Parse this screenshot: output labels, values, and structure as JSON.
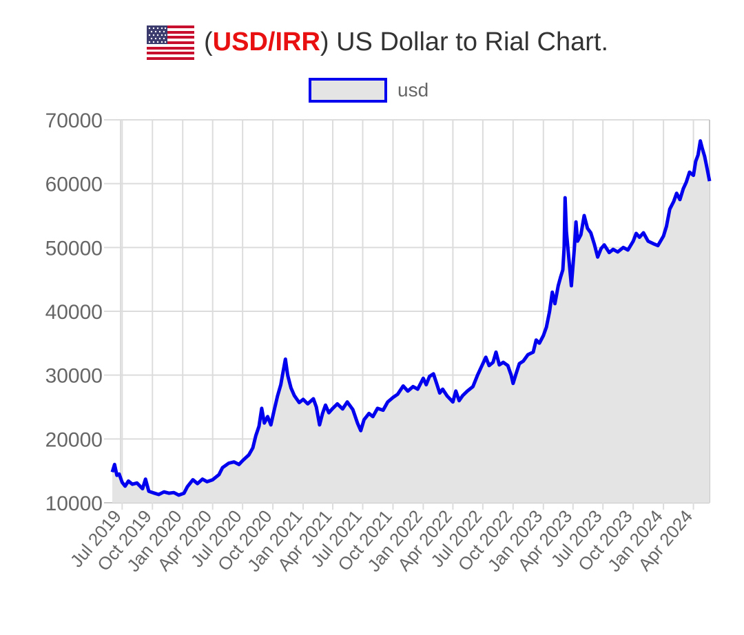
{
  "title": {
    "prefix": "(",
    "code": "USD/IRR",
    "suffix": ") US Dollar to Rial Chart.",
    "flag_icon": "us-flag-icon",
    "code_color": "#e81010"
  },
  "chart_data": {
    "type": "area",
    "title": "(USD/IRR) US Dollar to Rial Chart.",
    "legend": [
      "usd"
    ],
    "legend_position": "top",
    "grid": true,
    "xlabel": "",
    "ylabel": "",
    "ylim": [
      10000,
      70000
    ],
    "yticks": [
      70000,
      60000,
      50000,
      40000,
      30000,
      20000,
      10000
    ],
    "xlim": [
      "2019-06-01",
      "2024-05-20"
    ],
    "xticks": [
      {
        "date": "2019-07-01",
        "label": "Jul 2019"
      },
      {
        "date": "2019-10-01",
        "label": "Oct 2019"
      },
      {
        "date": "2020-01-01",
        "label": "Jan 2020"
      },
      {
        "date": "2020-04-01",
        "label": "Apr 2020"
      },
      {
        "date": "2020-07-01",
        "label": "Jul 2020"
      },
      {
        "date": "2020-10-01",
        "label": "Oct 2020"
      },
      {
        "date": "2021-01-01",
        "label": "Jan 2021"
      },
      {
        "date": "2021-04-01",
        "label": "Apr 2021"
      },
      {
        "date": "2021-07-01",
        "label": "Jul 2021"
      },
      {
        "date": "2021-10-01",
        "label": "Oct 2021"
      },
      {
        "date": "2022-01-01",
        "label": "Jan 2022"
      },
      {
        "date": "2022-04-01",
        "label": "Apr 2022"
      },
      {
        "date": "2022-07-01",
        "label": "Jul 2022"
      },
      {
        "date": "2022-10-01",
        "label": "Oct 2022"
      },
      {
        "date": "2023-01-01",
        "label": "Jan 2023"
      },
      {
        "date": "2023-04-01",
        "label": "Apr 2023"
      },
      {
        "date": "2023-07-01",
        "label": "Jul 2023"
      },
      {
        "date": "2023-10-01",
        "label": "Oct 2023"
      },
      {
        "date": "2024-01-01",
        "label": "Jan 2024"
      },
      {
        "date": "2024-04-01",
        "label": "Apr 2024"
      }
    ],
    "line_color": "#0000ee",
    "fill_color": "#e4e4e4",
    "series": [
      {
        "name": "usd",
        "points": [
          [
            "2019-06-01",
            14800
          ],
          [
            "2019-06-08",
            16000
          ],
          [
            "2019-06-15",
            14300
          ],
          [
            "2019-06-22",
            14500
          ],
          [
            "2019-07-01",
            13200
          ],
          [
            "2019-07-10",
            12600
          ],
          [
            "2019-07-20",
            13400
          ],
          [
            "2019-08-01",
            12900
          ],
          [
            "2019-08-15",
            13100
          ],
          [
            "2019-09-01",
            12200
          ],
          [
            "2019-09-10",
            13700
          ],
          [
            "2019-09-20",
            11800
          ],
          [
            "2019-10-01",
            11600
          ],
          [
            "2019-10-20",
            11300
          ],
          [
            "2019-11-05",
            11700
          ],
          [
            "2019-11-20",
            11500
          ],
          [
            "2019-12-05",
            11600
          ],
          [
            "2019-12-20",
            11200
          ],
          [
            "2020-01-05",
            11500
          ],
          [
            "2020-01-15",
            12500
          ],
          [
            "2020-02-01",
            13600
          ],
          [
            "2020-02-15",
            13000
          ],
          [
            "2020-03-01",
            13700
          ],
          [
            "2020-03-15",
            13300
          ],
          [
            "2020-04-01",
            13600
          ],
          [
            "2020-04-20",
            14400
          ],
          [
            "2020-05-01",
            15500
          ],
          [
            "2020-05-20",
            16200
          ],
          [
            "2020-06-05",
            16400
          ],
          [
            "2020-06-20",
            16000
          ],
          [
            "2020-07-01",
            16600
          ],
          [
            "2020-07-20",
            17500
          ],
          [
            "2020-08-01",
            18600
          ],
          [
            "2020-08-10",
            20500
          ],
          [
            "2020-08-20",
            22000
          ],
          [
            "2020-08-28",
            24800
          ],
          [
            "2020-09-05",
            22500
          ],
          [
            "2020-09-15",
            23500
          ],
          [
            "2020-09-25",
            22200
          ],
          [
            "2020-10-05",
            24500
          ],
          [
            "2020-10-15",
            26700
          ],
          [
            "2020-10-25",
            28500
          ],
          [
            "2020-11-01",
            30500
          ],
          [
            "2020-11-08",
            32500
          ],
          [
            "2020-11-15",
            30000
          ],
          [
            "2020-11-25",
            28000
          ],
          [
            "2020-12-05",
            26800
          ],
          [
            "2020-12-20",
            25700
          ],
          [
            "2021-01-01",
            26200
          ],
          [
            "2021-01-15",
            25500
          ],
          [
            "2021-02-01",
            26300
          ],
          [
            "2021-02-10",
            25000
          ],
          [
            "2021-02-20",
            22200
          ],
          [
            "2021-03-01",
            24000
          ],
          [
            "2021-03-10",
            25300
          ],
          [
            "2021-03-20",
            24100
          ],
          [
            "2021-04-01",
            24800
          ],
          [
            "2021-04-15",
            25500
          ],
          [
            "2021-05-01",
            24700
          ],
          [
            "2021-05-15",
            25800
          ],
          [
            "2021-06-01",
            24600
          ],
          [
            "2021-06-15",
            22500
          ],
          [
            "2021-06-25",
            21300
          ],
          [
            "2021-07-05",
            23000
          ],
          [
            "2021-07-20",
            24000
          ],
          [
            "2021-08-01",
            23500
          ],
          [
            "2021-08-15",
            24800
          ],
          [
            "2021-09-01",
            24500
          ],
          [
            "2021-09-15",
            25800
          ],
          [
            "2021-10-01",
            26500
          ],
          [
            "2021-10-15",
            27000
          ],
          [
            "2021-11-01",
            28300
          ],
          [
            "2021-11-15",
            27500
          ],
          [
            "2021-12-01",
            28200
          ],
          [
            "2021-12-15",
            27800
          ],
          [
            "2022-01-01",
            29500
          ],
          [
            "2022-01-10",
            28500
          ],
          [
            "2022-01-20",
            29800
          ],
          [
            "2022-02-01",
            30200
          ],
          [
            "2022-02-10",
            28800
          ],
          [
            "2022-02-20",
            27200
          ],
          [
            "2022-03-01",
            27800
          ],
          [
            "2022-03-15",
            26700
          ],
          [
            "2022-04-01",
            25800
          ],
          [
            "2022-04-10",
            27500
          ],
          [
            "2022-04-20",
            26000
          ],
          [
            "2022-05-01",
            26800
          ],
          [
            "2022-05-15",
            27500
          ],
          [
            "2022-06-01",
            28200
          ],
          [
            "2022-06-15",
            30000
          ],
          [
            "2022-07-01",
            31800
          ],
          [
            "2022-07-10",
            32800
          ],
          [
            "2022-07-20",
            31500
          ],
          [
            "2022-08-01",
            32000
          ],
          [
            "2022-08-10",
            33600
          ],
          [
            "2022-08-20",
            31600
          ],
          [
            "2022-09-01",
            32000
          ],
          [
            "2022-09-15",
            31500
          ],
          [
            "2022-09-25",
            30000
          ],
          [
            "2022-10-01",
            28700
          ],
          [
            "2022-10-10",
            30200
          ],
          [
            "2022-10-20",
            31800
          ],
          [
            "2022-11-01",
            32200
          ],
          [
            "2022-11-15",
            33200
          ],
          [
            "2022-12-01",
            33600
          ],
          [
            "2022-12-10",
            35500
          ],
          [
            "2022-12-20",
            35000
          ],
          [
            "2023-01-01",
            36200
          ],
          [
            "2023-01-10",
            37500
          ],
          [
            "2023-01-20",
            40000
          ],
          [
            "2023-01-28",
            43000
          ],
          [
            "2023-02-05",
            41200
          ],
          [
            "2023-02-15",
            44000
          ],
          [
            "2023-02-22",
            45300
          ],
          [
            "2023-03-01",
            46500
          ],
          [
            "2023-03-05",
            50000
          ],
          [
            "2023-03-08",
            57800
          ],
          [
            "2023-03-12",
            52500
          ],
          [
            "2023-03-20",
            48000
          ],
          [
            "2023-03-27",
            44000
          ],
          [
            "2023-04-05",
            49800
          ],
          [
            "2023-04-10",
            54000
          ],
          [
            "2023-04-15",
            51000
          ],
          [
            "2023-04-25",
            52000
          ],
          [
            "2023-05-05",
            55000
          ],
          [
            "2023-05-15",
            53000
          ],
          [
            "2023-05-25",
            52300
          ],
          [
            "2023-06-05",
            50500
          ],
          [
            "2023-06-15",
            48500
          ],
          [
            "2023-06-25",
            49800
          ],
          [
            "2023-07-05",
            50400
          ],
          [
            "2023-07-20",
            49200
          ],
          [
            "2023-08-01",
            49700
          ],
          [
            "2023-08-15",
            49300
          ],
          [
            "2023-09-01",
            50000
          ],
          [
            "2023-09-15",
            49600
          ],
          [
            "2023-10-01",
            51000
          ],
          [
            "2023-10-10",
            52200
          ],
          [
            "2023-10-20",
            51600
          ],
          [
            "2023-11-01",
            52300
          ],
          [
            "2023-11-15",
            51000
          ],
          [
            "2023-12-01",
            50600
          ],
          [
            "2023-12-15",
            50300
          ],
          [
            "2024-01-01",
            51800
          ],
          [
            "2024-01-10",
            53300
          ],
          [
            "2024-01-20",
            56000
          ],
          [
            "2024-02-01",
            57200
          ],
          [
            "2024-02-10",
            58500
          ],
          [
            "2024-02-20",
            57500
          ],
          [
            "2024-03-01",
            59200
          ],
          [
            "2024-03-10",
            60200
          ],
          [
            "2024-03-20",
            61800
          ],
          [
            "2024-04-01",
            61300
          ],
          [
            "2024-04-08",
            63500
          ],
          [
            "2024-04-15",
            64500
          ],
          [
            "2024-04-22",
            66700
          ],
          [
            "2024-04-28",
            65500
          ],
          [
            "2024-05-05",
            64300
          ],
          [
            "2024-05-12",
            62500
          ],
          [
            "2024-05-20",
            60400
          ]
        ]
      }
    ]
  }
}
